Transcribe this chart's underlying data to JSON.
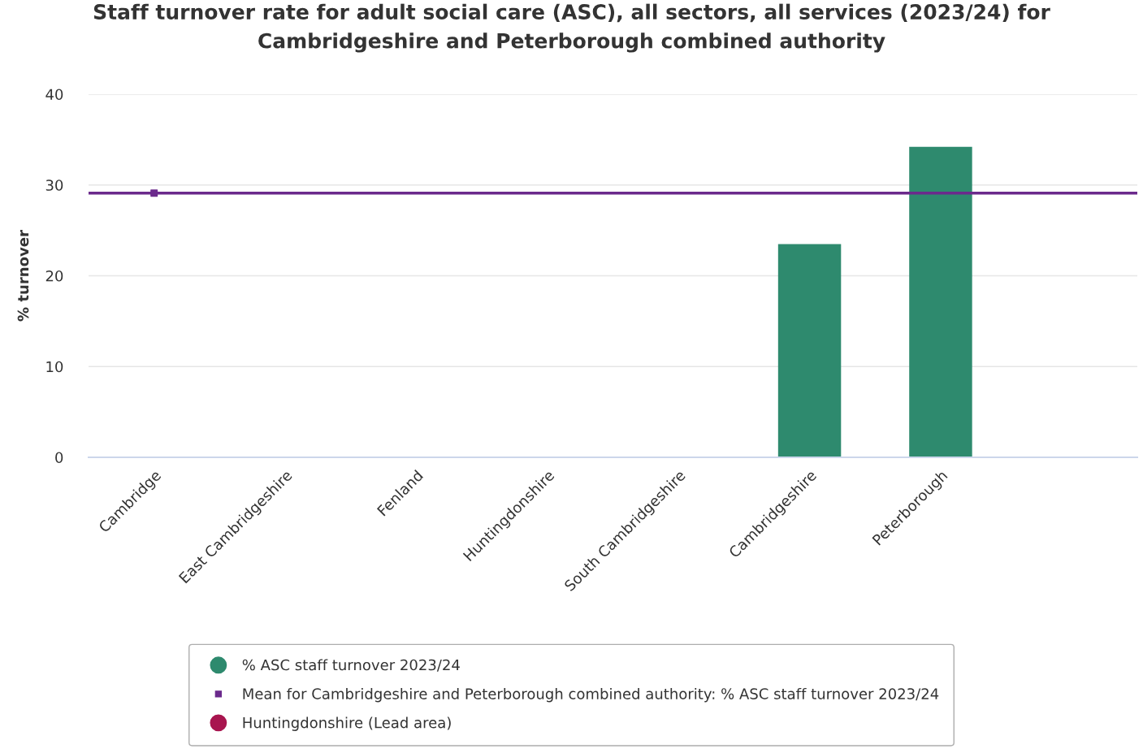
{
  "chart_data": {
    "type": "bar",
    "title": "Staff turnover rate for adult social care (ASC), all sectors, all services (2023/24) for\nCambridgeshire and Peterborough combined authority",
    "ylabel": "% turnover",
    "categories": [
      "Cambridge",
      "East Cambridgeshire",
      "Fenland",
      "Huntingdonshire",
      "South Cambridgeshire",
      "Cambridgeshire",
      "Peterborough",
      null
    ],
    "series": [
      {
        "name": "% ASC staff turnover 2023/24",
        "color": "#2e8a6e",
        "values": [
          null,
          null,
          null,
          null,
          null,
          23.5,
          34.2,
          null
        ]
      },
      {
        "name": "Mean for Cambridgeshire and Peterborough combined authority: % ASC staff turnover 2023/24",
        "type": "scatter",
        "marker": "square",
        "color": "#6b2a8c",
        "values": [
          29.1,
          null,
          null,
          null,
          null,
          null,
          null,
          null
        ]
      },
      {
        "name": "Huntingdonshire (Lead area)",
        "color": "#a8154f",
        "values": [
          null,
          null,
          null,
          null,
          null,
          null,
          null,
          null
        ]
      }
    ],
    "ref_lines": [
      {
        "axis": "y",
        "value": 29.1,
        "color": "#6b2a8c"
      }
    ],
    "ylim": [
      0,
      40
    ],
    "yticks": [
      0,
      10,
      20,
      30,
      40
    ],
    "grid": "y",
    "legend": "bottom"
  }
}
